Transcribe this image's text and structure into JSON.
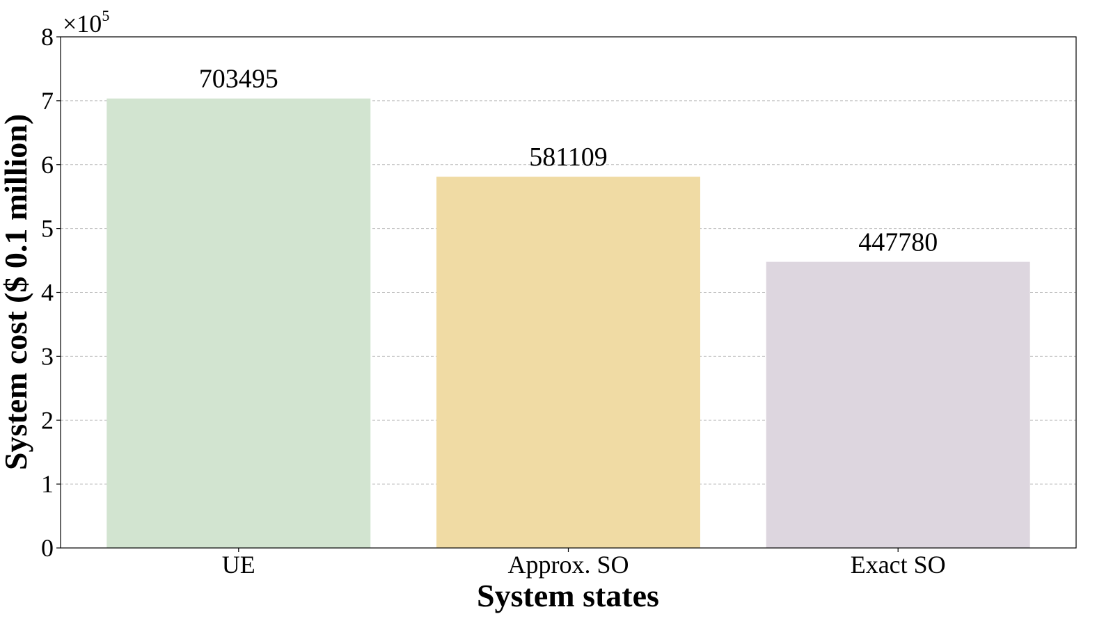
{
  "chart_data": {
    "type": "bar",
    "xlabel": "System states",
    "ylabel": "System cost ($ 0.1 million)",
    "y_multiplier": {
      "base": "×10",
      "exponent": "5"
    },
    "categories": [
      "UE",
      "Approx. SO",
      "Exact SO"
    ],
    "values": [
      703495,
      581109,
      447780
    ],
    "colors": [
      "#d2e4d0",
      "#f0dba4",
      "#ddd6df"
    ],
    "ylim": [
      0,
      800000
    ],
    "yticks": [
      0,
      {
        "value": 100000,
        "label": "1"
      },
      {
        "value": 200000,
        "label": "2"
      },
      {
        "value": 300000,
        "label": "3"
      },
      {
        "value": 400000,
        "label": "4"
      },
      {
        "value": 500000,
        "label": "5"
      },
      {
        "value": 600000,
        "label": "6"
      },
      {
        "value": 700000,
        "label": "7"
      },
      {
        "value": 800000,
        "label": "8"
      }
    ],
    "grid": true
  }
}
